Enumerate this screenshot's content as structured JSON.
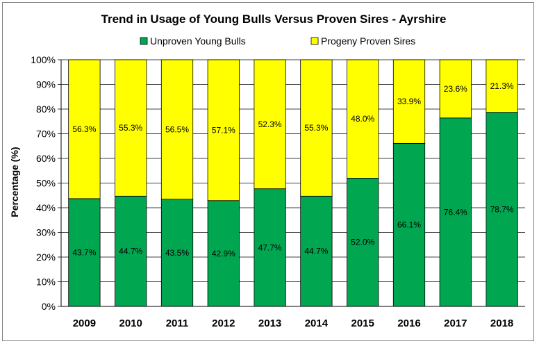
{
  "chart_data": {
    "type": "bar",
    "stacked": true,
    "title": "Trend in Usage of Young Bulls Versus Proven Sires - Ayrshire",
    "xlabel": "",
    "ylabel": "Percentage (%)",
    "ylim": [
      0,
      100
    ],
    "ytick_labels": [
      "0%",
      "10%",
      "20%",
      "30%",
      "40%",
      "50%",
      "60%",
      "70%",
      "80%",
      "90%",
      "100%"
    ],
    "grid": true,
    "legend_position": "top",
    "categories": [
      "2009",
      "2010",
      "2011",
      "2012",
      "2013",
      "2014",
      "2015",
      "2016",
      "2017",
      "2018"
    ],
    "series": [
      {
        "name": "Unproven Young Bulls",
        "color": "#00A650",
        "values": [
          43.7,
          44.7,
          43.5,
          42.9,
          47.7,
          44.7,
          52.0,
          66.1,
          76.4,
          78.7
        ],
        "labels": [
          "43.7%",
          "44.7%",
          "43.5%",
          "42.9%",
          "47.7%",
          "44.7%",
          "52.0%",
          "66.1%",
          "76.4%",
          "78.7%"
        ]
      },
      {
        "name": "Progeny Proven Sires",
        "color": "#FFFF00",
        "values": [
          56.3,
          55.3,
          56.5,
          57.1,
          52.3,
          55.3,
          48.0,
          33.9,
          23.6,
          21.3
        ],
        "labels": [
          "56.3%",
          "55.3%",
          "56.5%",
          "57.1%",
          "52.3%",
          "55.3%",
          "48.0%",
          "33.9%",
          "23.6%",
          "21.3%"
        ]
      }
    ]
  }
}
